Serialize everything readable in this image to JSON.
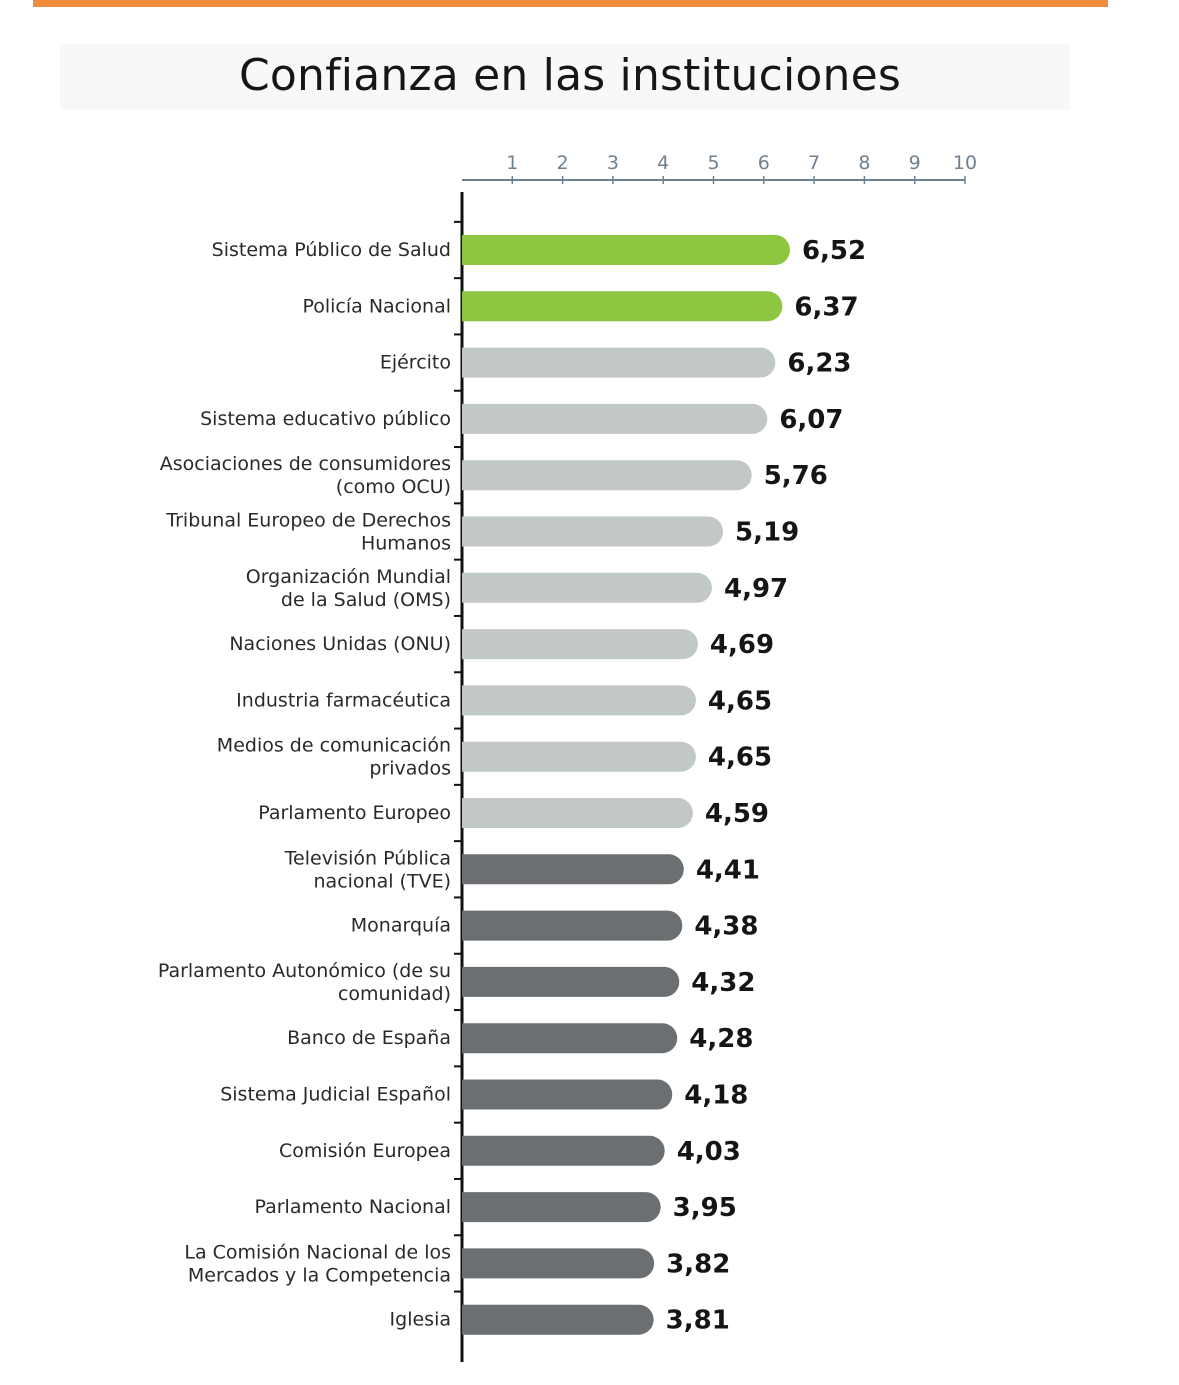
{
  "chart_data": {
    "type": "bar",
    "orientation": "horizontal",
    "title": "Confianza en las instituciones",
    "xlim": [
      0,
      10
    ],
    "xticks": [
      "1",
      "2",
      "3",
      "4",
      "5",
      "6",
      "7",
      "8",
      "9",
      "10"
    ],
    "grid": false,
    "categories": [
      [
        "Sistema Público de Salud"
      ],
      [
        "Policía Nacional"
      ],
      [
        "Ejército"
      ],
      [
        "Sistema  educativo público"
      ],
      [
        "Asociaciones de consumidores",
        "(como OCU)"
      ],
      [
        "Tribunal Europeo de Derechos",
        "Humanos"
      ],
      [
        "Organización Mundial",
        "de la Salud (OMS)"
      ],
      [
        "Naciones Unidas (ONU)"
      ],
      [
        "Industria farmacéutica"
      ],
      [
        "Medios de comunicación",
        "privados"
      ],
      [
        "Parlamento Europeo"
      ],
      [
        "Televisión Pública",
        "nacional (TVE)"
      ],
      [
        "Monarquía"
      ],
      [
        "Parlamento Autonómico (de su",
        "comunidad)"
      ],
      [
        "Banco de España"
      ],
      [
        "Sistema Judicial Español"
      ],
      [
        "Comisión Europea"
      ],
      [
        "Parlamento Nacional"
      ],
      [
        "La Comisión Nacional de los",
        "Mercados y la Competencia"
      ],
      [
        "Iglesia"
      ]
    ],
    "values": [
      6.52,
      6.37,
      6.23,
      6.07,
      5.76,
      5.19,
      4.97,
      4.69,
      4.65,
      4.65,
      4.59,
      4.41,
      4.38,
      4.32,
      4.28,
      4.18,
      4.03,
      3.95,
      3.82,
      3.81
    ],
    "value_labels": [
      "6,52",
      "6,37",
      "6,23",
      "6,07",
      "5,76",
      "5,19",
      "4,97",
      "4,69",
      "4,65",
      "4,65",
      "4,59",
      "4,41",
      "4,38",
      "4,32",
      "4,28",
      "4,18",
      "4,03",
      "3,95",
      "3,82",
      "3,81"
    ],
    "bar_colors": [
      "#8dc63f",
      "#8dc63f",
      "#c2c7c7",
      "#c2c7c7",
      "#c2c7c7",
      "#c2c7c7",
      "#c2c7c7",
      "#c2c7c7",
      "#c2c7c7",
      "#c2c7c7",
      "#c2c7c7",
      "#6b6f72",
      "#6b6f72",
      "#6b6f72",
      "#6b6f72",
      "#6b6f72",
      "#6b6f72",
      "#6b6f72",
      "#6b6f72",
      "#6b6f72"
    ],
    "colors": {
      "accent_rule": "#f08a3c",
      "axis": "#111111",
      "tick_axis": "#6f8190"
    }
  }
}
